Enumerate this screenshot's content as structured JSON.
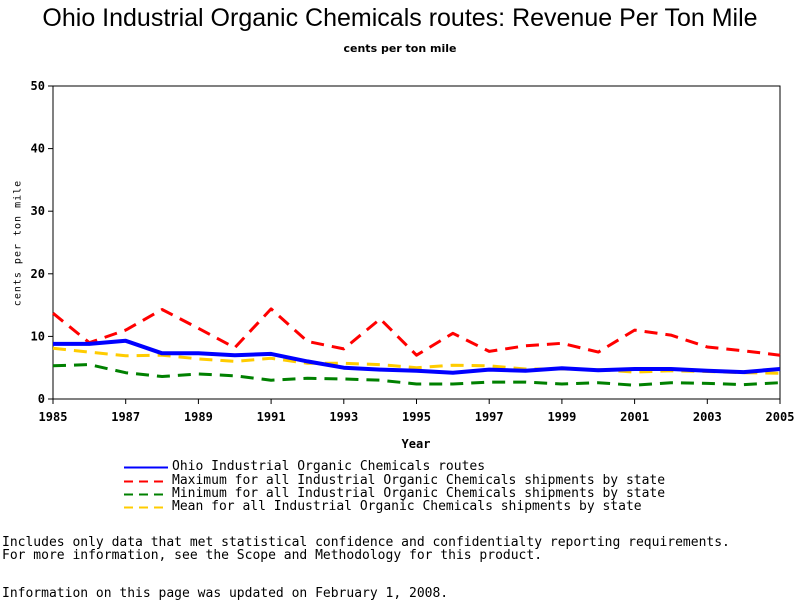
{
  "chart_data": {
    "type": "line",
    "title": "Ohio Industrial Organic Chemicals routes: Revenue Per Ton Mile",
    "subtitle": "cents per ton mile",
    "xlabel": "Year",
    "ylabel": "cents per ton mile",
    "xlim": [
      1985,
      2005
    ],
    "ylim": [
      0,
      50
    ],
    "x_ticks": [
      "1985",
      "1987",
      "1989",
      "1991",
      "1993",
      "1995",
      "1997",
      "1999",
      "2001",
      "2003",
      "2005"
    ],
    "y_ticks": [
      "0",
      "10",
      "20",
      "30",
      "40",
      "50"
    ],
    "x": [
      1985,
      1986,
      1987,
      1988,
      1989,
      1990,
      1991,
      1992,
      1993,
      1994,
      1995,
      1996,
      1997,
      1998,
      1999,
      2000,
      2001,
      2002,
      2003,
      2004,
      2005
    ],
    "series": [
      {
        "name": "Ohio Industrial Organic Chemicals routes",
        "color": "#0000ff",
        "style": "solid",
        "values": [
          8.8,
          8.8,
          9.3,
          7.3,
          7.3,
          7.0,
          7.2,
          6.0,
          5.0,
          4.7,
          4.5,
          4.2,
          4.7,
          4.5,
          4.9,
          4.6,
          4.8,
          4.8,
          4.5,
          4.3,
          4.8
        ]
      },
      {
        "name": "Maximum for all Industrial Organic Chemicals shipments by state",
        "color": "#ff0000",
        "style": "dashed",
        "values": [
          13.7,
          9.0,
          11.0,
          14.3,
          11.3,
          8.2,
          14.4,
          9.2,
          8.0,
          12.8,
          7.0,
          10.5,
          7.6,
          8.5,
          8.9,
          7.5,
          11.0,
          10.2,
          8.3,
          7.7,
          7.0
        ]
      },
      {
        "name": "Minimum for all Industrial Organic Chemicals shipments by state",
        "color": "#008000",
        "style": "dashed",
        "values": [
          5.3,
          5.5,
          4.2,
          3.6,
          4.0,
          3.7,
          3.0,
          3.3,
          3.2,
          3.0,
          2.4,
          2.4,
          2.7,
          2.7,
          2.4,
          2.6,
          2.2,
          2.6,
          2.5,
          2.3,
          2.6
        ]
      },
      {
        "name": "Mean for all Industrial Organic Chemicals shipments by state",
        "color": "#ffcc00",
        "style": "dashed",
        "values": [
          8.1,
          7.5,
          6.9,
          7.0,
          6.4,
          6.0,
          6.5,
          5.7,
          5.7,
          5.5,
          5.0,
          5.4,
          5.3,
          4.8,
          4.8,
          4.7,
          4.3,
          4.5,
          4.4,
          4.2,
          4.1
        ]
      }
    ],
    "grid": false,
    "legend_position": "bottom"
  },
  "footer": {
    "note_line1": "Includes only data that met statistical confidence and confidentialty reporting requirements.",
    "note_line2": "For more information, see the Scope and Methodology for this product.",
    "updated": "Information on this page was updated on February 1, 2008."
  }
}
